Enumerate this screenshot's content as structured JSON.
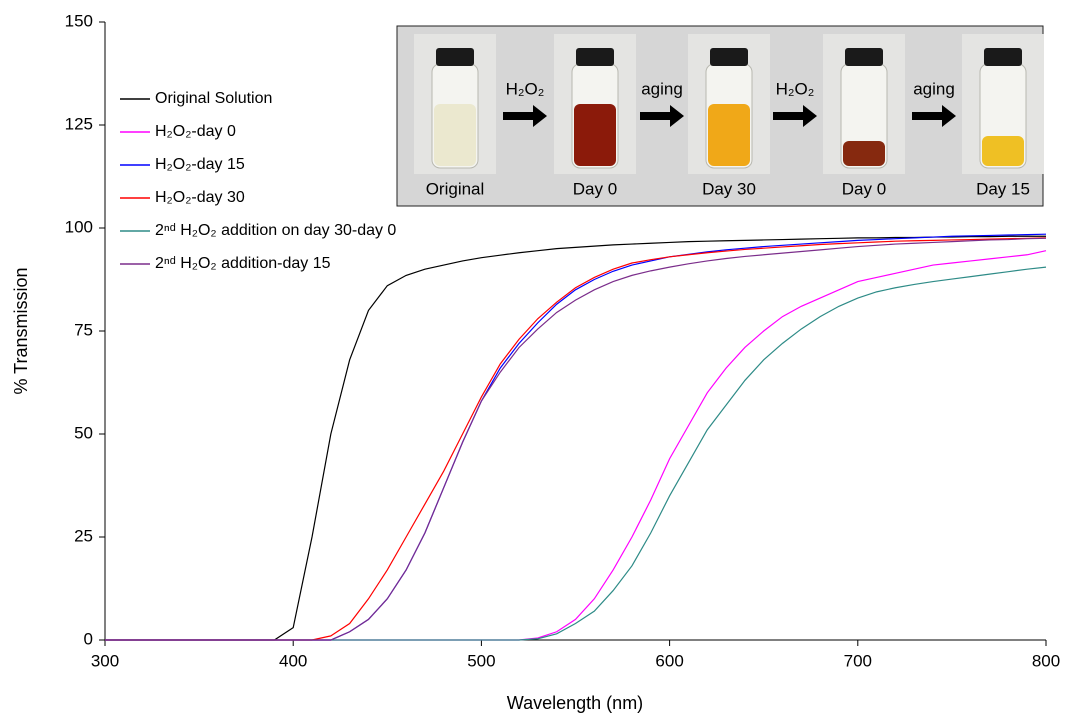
{
  "chart_data": {
    "type": "line",
    "xlabel": "Wavelength (nm)",
    "ylabel": "% Transmission",
    "xlim": [
      300,
      800
    ],
    "xticks": [
      300,
      400,
      500,
      600,
      700,
      800
    ],
    "ylim": [
      0,
      150
    ],
    "yticks": [
      0,
      25,
      50,
      75,
      100,
      125,
      150
    ],
    "grid": false,
    "x": [
      300,
      310,
      320,
      330,
      340,
      350,
      360,
      370,
      380,
      390,
      400,
      410,
      420,
      430,
      440,
      450,
      460,
      470,
      480,
      490,
      500,
      510,
      520,
      530,
      540,
      550,
      560,
      570,
      580,
      590,
      600,
      610,
      620,
      630,
      640,
      650,
      660,
      670,
      680,
      690,
      700,
      710,
      720,
      730,
      740,
      750,
      760,
      770,
      780,
      790,
      800
    ],
    "series": [
      {
        "name": "Original Solution",
        "color": "#000000",
        "values": [
          0,
          0,
          0,
          0,
          0,
          0,
          0,
          0,
          0,
          0,
          3,
          25,
          50,
          68,
          80,
          86,
          88.5,
          90,
          91,
          92,
          92.8,
          93.4,
          94,
          94.5,
          95,
          95.3,
          95.6,
          95.9,
          96.1,
          96.3,
          96.5,
          96.7,
          96.8,
          96.9,
          97,
          97.1,
          97.2,
          97.3,
          97.4,
          97.5,
          97.6,
          97.6,
          97.7,
          97.7,
          97.8,
          97.8,
          97.9,
          97.9,
          98,
          98,
          98
        ]
      },
      {
        "name": "H₂O₂-day 0",
        "color": "#ff00ff",
        "values": [
          0,
          0,
          0,
          0,
          0,
          0,
          0,
          0,
          0,
          0,
          0,
          0,
          0,
          0,
          0,
          0,
          0,
          0,
          0,
          0,
          0,
          0,
          0,
          0.5,
          2,
          5,
          10,
          17,
          25,
          34,
          44,
          52,
          60,
          66,
          71,
          75,
          78.5,
          81,
          83,
          85,
          87,
          88,
          89,
          90,
          91,
          91.5,
          92,
          92.5,
          93,
          93.5,
          94.5
        ]
      },
      {
        "name": "H₂O₂-day 15",
        "color": "#0000ff",
        "values": [
          0,
          0,
          0,
          0,
          0,
          0,
          0,
          0,
          0,
          0,
          0,
          0,
          0,
          2,
          5,
          10,
          17,
          26,
          37,
          48,
          58,
          66,
          72,
          77,
          81.5,
          85,
          87.5,
          89.5,
          91,
          92,
          93,
          93.6,
          94.2,
          94.7,
          95.1,
          95.5,
          95.8,
          96.1,
          96.4,
          96.7,
          97,
          97.2,
          97.4,
          97.6,
          97.8,
          98,
          98.1,
          98.2,
          98.3,
          98.4,
          98.5
        ]
      },
      {
        "name": "H₂O₂-day 30",
        "color": "#ff0000",
        "values": [
          0,
          0,
          0,
          0,
          0,
          0,
          0,
          0,
          0,
          0,
          0,
          0,
          1,
          4,
          10,
          17,
          25,
          33,
          41,
          50,
          59,
          67,
          73,
          78,
          82,
          85.5,
          88,
          90,
          91.5,
          92.3,
          93,
          93.5,
          94,
          94.4,
          94.8,
          95.1,
          95.4,
          95.7,
          96,
          96.2,
          96.4,
          96.6,
          96.8,
          96.9,
          97,
          97.1,
          97.2,
          97.3,
          97.4,
          97.5,
          97.6
        ]
      },
      {
        "name": "2ⁿᵈ H₂O₂ addition on day 30-day 0",
        "color": "#2e8b87",
        "values": [
          0,
          0,
          0,
          0,
          0,
          0,
          0,
          0,
          0,
          0,
          0,
          0,
          0,
          0,
          0,
          0,
          0,
          0,
          0,
          0,
          0,
          0,
          0,
          0.3,
          1.5,
          4,
          7,
          12,
          18,
          26,
          35,
          43,
          51,
          57,
          63,
          68,
          72,
          75.5,
          78.5,
          81,
          83,
          84.5,
          85.5,
          86.3,
          87,
          87.6,
          88.2,
          88.8,
          89.4,
          90,
          90.5
        ]
      },
      {
        "name": "2ⁿᵈ H₂O₂ addition-day 15",
        "color": "#7b2d8b",
        "values": [
          0,
          0,
          0,
          0,
          0,
          0,
          0,
          0,
          0,
          0,
          0,
          0,
          0,
          2,
          5,
          10,
          17,
          26,
          37,
          48,
          58,
          65,
          71,
          75.5,
          79.5,
          82.5,
          85,
          87,
          88.5,
          89.6,
          90.5,
          91.3,
          92,
          92.6,
          93.1,
          93.5,
          93.9,
          94.3,
          94.7,
          95.1,
          95.5,
          95.8,
          96.1,
          96.3,
          96.5,
          96.7,
          96.9,
          97.1,
          97.2,
          97.4,
          97.5
        ]
      }
    ],
    "inset": {
      "photos": [
        {
          "label": "Original",
          "color": "#ebe8cf"
        },
        {
          "label": "Day 0",
          "color": "#8b1a0a"
        },
        {
          "label": "Day 30",
          "color": "#f0a818"
        },
        {
          "label": "Day 0",
          "color": "#86290f"
        },
        {
          "label": "Day 15",
          "color": "#efc024"
        }
      ],
      "steps": [
        "H₂O₂",
        "aging",
        "H₂O₂",
        "aging"
      ]
    }
  }
}
